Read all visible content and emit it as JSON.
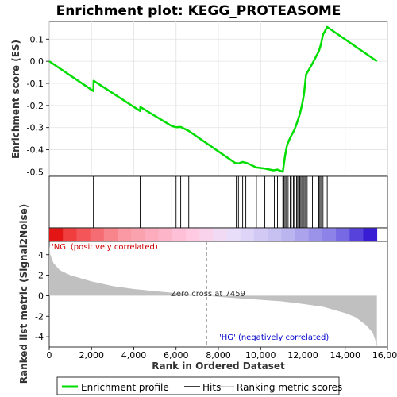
{
  "chart_data": {
    "type": "line",
    "title": "Enrichment plot: KEGG_PROTEASOME",
    "enrichment": {
      "ylabel": "Enrichment score (ES)",
      "yticks": [
        "-0.5",
        "-0.4",
        "-0.3",
        "-0.2",
        "-0.1",
        "0.0",
        "0.1"
      ],
      "ylim": [
        -0.52,
        0.18
      ],
      "grid": true,
      "series_name": "Enrichment profile",
      "color": "#00dd00",
      "x": [
        0,
        2090,
        2100,
        4300,
        4310,
        5800,
        6000,
        6220,
        6600,
        8800,
        8950,
        9150,
        9350,
        9800,
        10200,
        10600,
        10800,
        11050,
        11150,
        11250,
        11400,
        11600,
        11750,
        11850,
        11950,
        12050,
        12150,
        12450,
        12750,
        12850,
        12950,
        13150,
        15500
      ],
      "y": [
        0.0,
        -0.135,
        -0.088,
        -0.225,
        -0.207,
        -0.293,
        -0.298,
        -0.297,
        -0.315,
        -0.46,
        -0.462,
        -0.455,
        -0.46,
        -0.48,
        -0.485,
        -0.493,
        -0.49,
        -0.5,
        -0.43,
        -0.38,
        -0.345,
        -0.31,
        -0.27,
        -0.24,
        -0.2,
        -0.15,
        -0.06,
        -0.01,
        0.045,
        0.075,
        0.12,
        0.155,
        0.0
      ]
    },
    "hits": {
      "series_name": "Hits",
      "x": [
        2090,
        4300,
        5800,
        6000,
        6220,
        6600,
        8850,
        8950,
        9150,
        9300,
        9800,
        10200,
        10650,
        10800,
        11050,
        11100,
        11150,
        11200,
        11250,
        11300,
        11400,
        11450,
        11550,
        11600,
        11700,
        11750,
        11800,
        11850,
        11900,
        11950,
        12000,
        12050,
        12100,
        12150,
        12200,
        12450,
        12750,
        12800,
        12850,
        12950,
        13150
      ]
    },
    "rank_metric": {
      "ylabel": "Ranked list metric (Signal2Noise)",
      "yticks": [
        "4",
        "2",
        "0",
        "-2",
        "-4"
      ],
      "ylim": [
        -5,
        5.3
      ],
      "series_name": "Ranking metric scores",
      "color": "#c0c0c0",
      "x": [
        0,
        50,
        200,
        500,
        1000,
        2000,
        3000,
        4000,
        5000,
        6000,
        7459,
        8000,
        9000,
        10000,
        11000,
        12000,
        13000,
        13500,
        14000,
        14500,
        15000,
        15300,
        15450,
        15500
      ],
      "y": [
        4.9,
        4.0,
        3.2,
        2.5,
        2.0,
        1.4,
        0.95,
        0.65,
        0.45,
        0.25,
        0.0,
        -0.1,
        -0.25,
        -0.4,
        -0.55,
        -0.8,
        -1.1,
        -1.4,
        -1.7,
        -2.1,
        -2.9,
        -3.6,
        -4.5,
        -5.0
      ],
      "zero_cross_label": "Zero cross at 7459",
      "zero_cross": 7459,
      "pos_label": "'NG' (positively correlated)",
      "neg_label": "'HG' (negatively correlated)"
    },
    "xlabel": "Rank in Ordered Dataset",
    "xticks": [
      "0",
      "2,000",
      "4,000",
      "6,000",
      "8,000",
      "10,000",
      "12,000",
      "14,000",
      "16,000"
    ],
    "xlim": [
      0,
      16000
    ],
    "n_genes": 15500,
    "legend": {
      "placement": "bottom",
      "entries": [
        {
          "label": "Enrichment profile",
          "color": "#00dd00"
        },
        {
          "label": "Hits",
          "color": "#000000"
        },
        {
          "label": "Ranking metric scores",
          "color": "#c0c0c0"
        }
      ]
    }
  }
}
